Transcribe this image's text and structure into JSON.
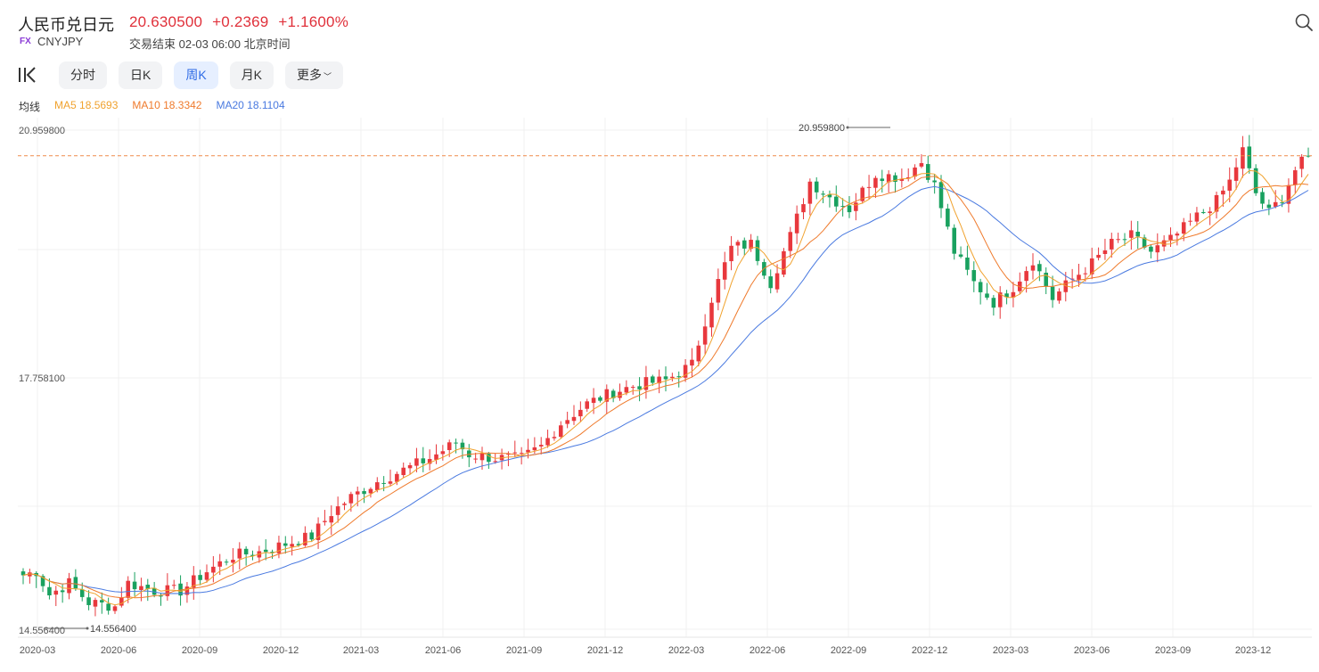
{
  "header": {
    "name": "人民币兑日元",
    "price": "20.630500",
    "change": "+0.2369",
    "change_pct": "+1.1600%",
    "fx_tag": "FX",
    "code": "CNYJPY",
    "status": "交易结束 02-03 06:00 北京时间"
  },
  "icons": {
    "search": "search-icon",
    "kline": "kline-icon"
  },
  "tabs": [
    {
      "label": "分时",
      "active": false
    },
    {
      "label": "日K",
      "active": false
    },
    {
      "label": "周K",
      "active": true
    },
    {
      "label": "月K",
      "active": false
    },
    {
      "label": "更多",
      "active": false
    }
  ],
  "ma": {
    "label": "均线",
    "ma5": "MA5 18.5693",
    "ma10": "MA10 18.3342",
    "ma20": "MA20 18.1104"
  },
  "colors": {
    "up": "#e8383d",
    "down": "#19a15f",
    "ma5": "#f0a22e",
    "ma10": "#ef7a2c",
    "ma20": "#4a7ae0",
    "price_line": "#ef8a4a"
  },
  "chart_data": {
    "type": "candlestick",
    "interval": "weekly",
    "y_ticks": [
      "20.959800",
      "17.758100",
      "14.556400"
    ],
    "x_ticks": [
      "2020-03",
      "2020-06",
      "2020-09",
      "2020-12",
      "2021-03",
      "2021-06",
      "2021-09",
      "2021-12",
      "2022-03",
      "2022-06",
      "2022-09",
      "2022-12",
      "2023-03",
      "2023-06",
      "2023-09",
      "2023-12"
    ],
    "ylim": [
      14.5564,
      20.9598
    ],
    "high_label": "20.959800",
    "low_label": "14.556400",
    "current_price": 20.6305,
    "grid": true,
    "close_anchors": [
      {
        "t": 0,
        "v": 15.25
      },
      {
        "t": 2,
        "v": 15.3
      },
      {
        "t": 4,
        "v": 15.0
      },
      {
        "t": 7,
        "v": 15.15
      },
      {
        "t": 10,
        "v": 14.9
      },
      {
        "t": 14,
        "v": 14.85
      },
      {
        "t": 16,
        "v": 15.15
      },
      {
        "t": 20,
        "v": 15.05
      },
      {
        "t": 24,
        "v": 15.05
      },
      {
        "t": 28,
        "v": 15.3
      },
      {
        "t": 32,
        "v": 15.5
      },
      {
        "t": 36,
        "v": 15.55
      },
      {
        "t": 40,
        "v": 15.65
      },
      {
        "t": 44,
        "v": 15.75
      },
      {
        "t": 47,
        "v": 16.05
      },
      {
        "t": 50,
        "v": 16.25
      },
      {
        "t": 54,
        "v": 16.45
      },
      {
        "t": 58,
        "v": 16.6
      },
      {
        "t": 62,
        "v": 16.75
      },
      {
        "t": 66,
        "v": 16.95
      },
      {
        "t": 68,
        "v": 16.8
      },
      {
        "t": 72,
        "v": 16.75
      },
      {
        "t": 76,
        "v": 16.75
      },
      {
        "t": 79,
        "v": 16.9
      },
      {
        "t": 82,
        "v": 17.2
      },
      {
        "t": 86,
        "v": 17.45
      },
      {
        "t": 90,
        "v": 17.6
      },
      {
        "t": 94,
        "v": 17.7
      },
      {
        "t": 98,
        "v": 17.75
      },
      {
        "t": 102,
        "v": 17.95
      },
      {
        "t": 105,
        "v": 18.8
      },
      {
        "t": 108,
        "v": 19.45
      },
      {
        "t": 111,
        "v": 19.5
      },
      {
        "t": 114,
        "v": 19.0
      },
      {
        "t": 117,
        "v": 19.6
      },
      {
        "t": 120,
        "v": 20.3
      },
      {
        "t": 123,
        "v": 20.1
      },
      {
        "t": 126,
        "v": 19.95
      },
      {
        "t": 130,
        "v": 20.4
      },
      {
        "t": 134,
        "v": 20.35
      },
      {
        "t": 137,
        "v": 20.55
      },
      {
        "t": 139,
        "v": 20.25
      },
      {
        "t": 142,
        "v": 19.4
      },
      {
        "t": 145,
        "v": 19.0
      },
      {
        "t": 148,
        "v": 18.75
      },
      {
        "t": 151,
        "v": 18.95
      },
      {
        "t": 154,
        "v": 19.3
      },
      {
        "t": 157,
        "v": 18.8
      },
      {
        "t": 160,
        "v": 19.05
      },
      {
        "t": 163,
        "v": 19.25
      },
      {
        "t": 166,
        "v": 19.5
      },
      {
        "t": 169,
        "v": 19.6
      },
      {
        "t": 172,
        "v": 19.4
      },
      {
        "t": 175,
        "v": 19.55
      },
      {
        "t": 179,
        "v": 19.85
      },
      {
        "t": 182,
        "v": 20.05
      },
      {
        "t": 184,
        "v": 20.3
      },
      {
        "t": 186,
        "v": 20.7
      },
      {
        "t": 188,
        "v": 20.15
      },
      {
        "t": 190,
        "v": 19.9
      },
      {
        "t": 192,
        "v": 20.1
      },
      {
        "t": 194,
        "v": 20.45
      },
      {
        "t": 196,
        "v": 20.63
      }
    ]
  }
}
